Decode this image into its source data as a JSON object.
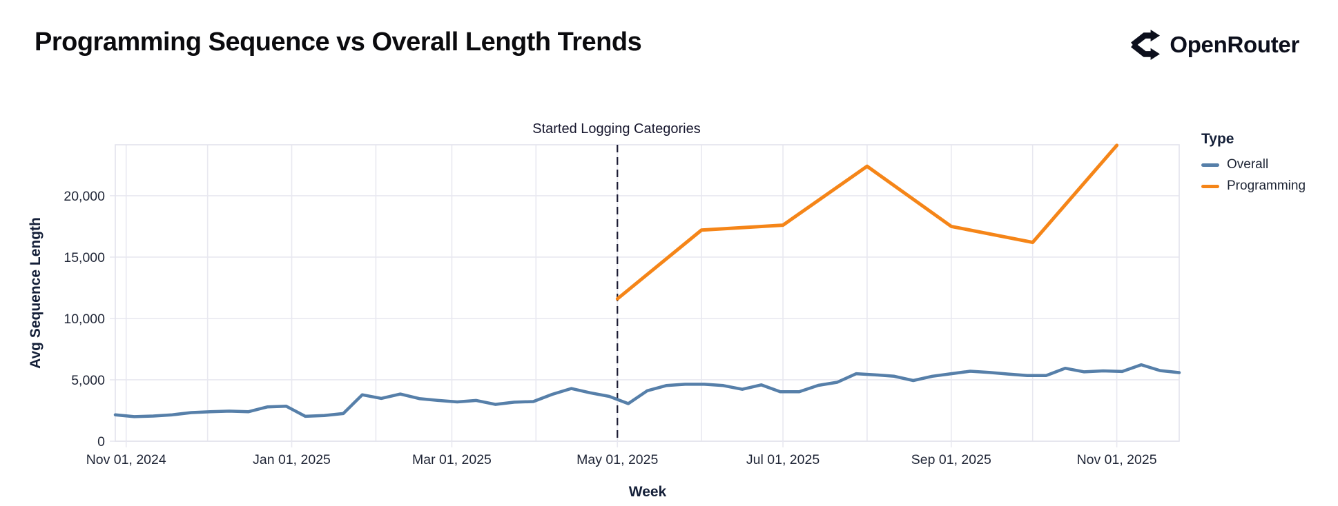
{
  "header": {
    "title": "Programming Sequence vs Overall Length Trends",
    "brand": "OpenRouter",
    "brand_icon": "route-split-icon"
  },
  "chart_data": {
    "type": "line",
    "title": "Programming Sequence vs Overall Length Trends",
    "xlabel": "Week",
    "ylabel": "Avg Sequence Length",
    "ylim": [
      0,
      24150
    ],
    "x_domain": [
      "2024-10-28",
      "2025-11-24"
    ],
    "grid": true,
    "legend_position": "right",
    "y_ticks": [
      {
        "value": 0,
        "label": "0"
      },
      {
        "value": 5000,
        "label": "5,000"
      },
      {
        "value": 10000,
        "label": "10,000"
      },
      {
        "value": 15000,
        "label": "15,000"
      },
      {
        "value": 20000,
        "label": "20,000"
      }
    ],
    "x_ticks": [
      {
        "date": "2024-11-01",
        "label": "Nov 01, 2024"
      },
      {
        "date": "2025-01-01",
        "label": "Jan 01, 2025"
      },
      {
        "date": "2025-03-01",
        "label": "Mar 01, 2025"
      },
      {
        "date": "2025-05-01",
        "label": "May 01, 2025"
      },
      {
        "date": "2025-07-01",
        "label": "Jul 01, 2025"
      },
      {
        "date": "2025-09-01",
        "label": "Sep 01, 2025"
      },
      {
        "date": "2025-11-01",
        "label": "Nov 01, 2025"
      }
    ],
    "x_gridlines": [
      "2024-11-01",
      "2024-12-01",
      "2025-01-01",
      "2025-02-01",
      "2025-03-01",
      "2025-04-01",
      "2025-05-01",
      "2025-06-01",
      "2025-07-01",
      "2025-08-01",
      "2025-09-01",
      "2025-10-01",
      "2025-11-01"
    ],
    "annotation": {
      "date": "2025-05-01",
      "label": "Started Logging Categories"
    },
    "legend": {
      "title": "Type",
      "entries": [
        {
          "name": "Overall",
          "color": "#567fa9"
        },
        {
          "name": "Programming",
          "color": "#f58518"
        }
      ]
    },
    "series": [
      {
        "name": "Overall",
        "color": "#567fa9",
        "stroke_width": 4.5,
        "points": [
          {
            "date": "2024-10-28",
            "value": 2150
          },
          {
            "date": "2024-11-04",
            "value": 2000
          },
          {
            "date": "2024-11-11",
            "value": 2050
          },
          {
            "date": "2024-11-18",
            "value": 2150
          },
          {
            "date": "2024-11-25",
            "value": 2330
          },
          {
            "date": "2024-12-02",
            "value": 2400
          },
          {
            "date": "2024-12-09",
            "value": 2450
          },
          {
            "date": "2024-12-16",
            "value": 2400
          },
          {
            "date": "2024-12-23",
            "value": 2790
          },
          {
            "date": "2024-12-30",
            "value": 2850
          },
          {
            "date": "2025-01-06",
            "value": 2030
          },
          {
            "date": "2025-01-13",
            "value": 2090
          },
          {
            "date": "2025-01-20",
            "value": 2250
          },
          {
            "date": "2025-01-27",
            "value": 3780
          },
          {
            "date": "2025-02-03",
            "value": 3490
          },
          {
            "date": "2025-02-10",
            "value": 3840
          },
          {
            "date": "2025-02-17",
            "value": 3470
          },
          {
            "date": "2025-02-24",
            "value": 3320
          },
          {
            "date": "2025-03-03",
            "value": 3200
          },
          {
            "date": "2025-03-10",
            "value": 3320
          },
          {
            "date": "2025-03-17",
            "value": 3000
          },
          {
            "date": "2025-03-24",
            "value": 3180
          },
          {
            "date": "2025-03-31",
            "value": 3230
          },
          {
            "date": "2025-04-07",
            "value": 3820
          },
          {
            "date": "2025-04-14",
            "value": 4290
          },
          {
            "date": "2025-04-21",
            "value": 3940
          },
          {
            "date": "2025-04-28",
            "value": 3650
          },
          {
            "date": "2025-05-05",
            "value": 3060
          },
          {
            "date": "2025-05-12",
            "value": 4110
          },
          {
            "date": "2025-05-19",
            "value": 4530
          },
          {
            "date": "2025-05-26",
            "value": 4640
          },
          {
            "date": "2025-06-02",
            "value": 4640
          },
          {
            "date": "2025-06-09",
            "value": 4530
          },
          {
            "date": "2025-06-16",
            "value": 4230
          },
          {
            "date": "2025-06-23",
            "value": 4590
          },
          {
            "date": "2025-06-30",
            "value": 4030
          },
          {
            "date": "2025-07-07",
            "value": 4030
          },
          {
            "date": "2025-07-14",
            "value": 4550
          },
          {
            "date": "2025-07-21",
            "value": 4800
          },
          {
            "date": "2025-07-28",
            "value": 5500
          },
          {
            "date": "2025-08-04",
            "value": 5410
          },
          {
            "date": "2025-08-11",
            "value": 5290
          },
          {
            "date": "2025-08-18",
            "value": 4940
          },
          {
            "date": "2025-08-25",
            "value": 5290
          },
          {
            "date": "2025-09-01",
            "value": 5500
          },
          {
            "date": "2025-09-08",
            "value": 5700
          },
          {
            "date": "2025-09-15",
            "value": 5600
          },
          {
            "date": "2025-09-22",
            "value": 5470
          },
          {
            "date": "2025-09-29",
            "value": 5350
          },
          {
            "date": "2025-10-06",
            "value": 5350
          },
          {
            "date": "2025-10-13",
            "value": 5940
          },
          {
            "date": "2025-10-20",
            "value": 5650
          },
          {
            "date": "2025-10-27",
            "value": 5730
          },
          {
            "date": "2025-11-03",
            "value": 5680
          },
          {
            "date": "2025-11-10",
            "value": 6230
          },
          {
            "date": "2025-11-17",
            "value": 5750
          },
          {
            "date": "2025-11-24",
            "value": 5590
          }
        ]
      },
      {
        "name": "Programming",
        "color": "#f58518",
        "stroke_width": 5,
        "points": [
          {
            "date": "2025-05-01",
            "value": 11600
          },
          {
            "date": "2025-06-01",
            "value": 17200
          },
          {
            "date": "2025-07-01",
            "value": 17600
          },
          {
            "date": "2025-08-01",
            "value": 22400
          },
          {
            "date": "2025-09-01",
            "value": 17500
          },
          {
            "date": "2025-10-01",
            "value": 16200
          },
          {
            "date": "2025-11-01",
            "value": 24100
          }
        ]
      }
    ]
  }
}
